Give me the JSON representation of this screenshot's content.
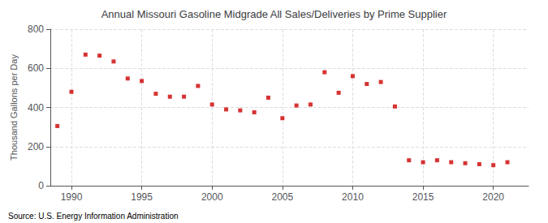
{
  "chart_data": {
    "type": "scatter",
    "title": "Annual Missouri Gasoline Midgrade All Sales/Deliveries by Prime Supplier",
    "ylabel": "Thousand Gallons per Day",
    "annotation": "Source: U.S. Energy Information Administration",
    "color": "#cc0000",
    "marker": "square",
    "grid": true,
    "x": [
      1989,
      1990,
      1991,
      1992,
      1993,
      1994,
      1995,
      1996,
      1997,
      1998,
      1999,
      2000,
      2001,
      2002,
      2003,
      2004,
      2005,
      2006,
      2007,
      2008,
      2009,
      2010,
      2011,
      2012,
      2013,
      2014,
      2015,
      2016,
      2017,
      2018,
      2019,
      2020,
      2021
    ],
    "values": [
      305,
      480,
      670,
      665,
      635,
      548,
      535,
      470,
      455,
      455,
      510,
      415,
      390,
      385,
      375,
      450,
      345,
      410,
      415,
      580,
      475,
      560,
      520,
      530,
      405,
      130,
      120,
      130,
      120,
      115,
      110,
      105,
      120
    ],
    "xlim": [
      1988.5,
      2022.5
    ],
    "xticks": [
      1990,
      1995,
      2000,
      2005,
      2010,
      2015,
      2020
    ],
    "ylim": [
      0,
      800
    ],
    "yticks": [
      0,
      200,
      400,
      600,
      800
    ]
  }
}
